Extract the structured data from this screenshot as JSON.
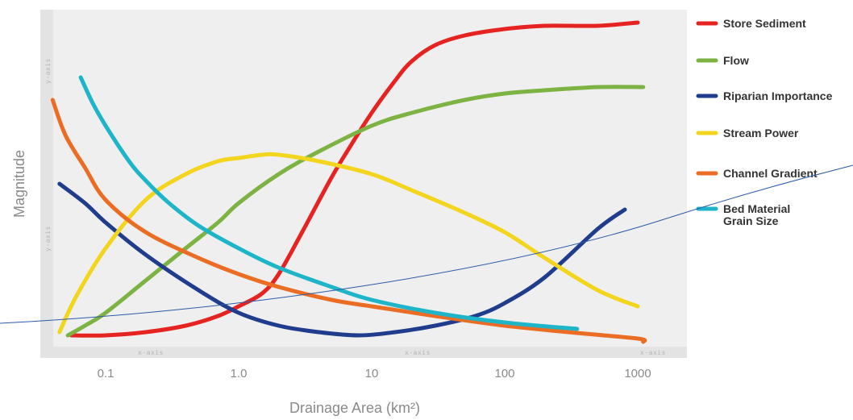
{
  "chart_data": {
    "type": "line",
    "xlabel": "Drainage Area (km²)",
    "ylabel": "Magnitude",
    "x_scale": "log",
    "xlim": [
      0.04,
      1300
    ],
    "ylim": [
      0,
      1
    ],
    "x_ticks": [
      0.1,
      1.0,
      10,
      100,
      1000
    ],
    "x_tick_labels": [
      "0.1",
      "1.0",
      "10",
      "100",
      "1000"
    ],
    "x_axis_tags": [
      "x-axis",
      "x-axis",
      "x-axis"
    ],
    "y_axis_tags": [
      "y-axis",
      "y-axis"
    ],
    "grid": false,
    "legend_position": "right",
    "series": [
      {
        "name": "Store Sediment",
        "color": "#e52421",
        "x": [
          0.055,
          0.1,
          0.2,
          0.4,
          0.7,
          1.0,
          1.5,
          2.0,
          3.0,
          5.0,
          7.0,
          10,
          15,
          20,
          30,
          50,
          100,
          200,
          500,
          1000
        ],
        "y": [
          0.03,
          0.03,
          0.04,
          0.06,
          0.09,
          0.12,
          0.16,
          0.22,
          0.35,
          0.52,
          0.62,
          0.72,
          0.82,
          0.88,
          0.93,
          0.96,
          0.98,
          0.99,
          0.99,
          1.0
        ]
      },
      {
        "name": "Flow",
        "color": "#7cb342",
        "x": [
          0.052,
          0.07,
          0.1,
          0.2,
          0.4,
          0.7,
          1.0,
          2.0,
          4.0,
          10,
          20,
          50,
          100,
          200,
          500,
          1100
        ],
        "y": [
          0.03,
          0.06,
          0.1,
          0.2,
          0.3,
          0.38,
          0.44,
          0.53,
          0.6,
          0.68,
          0.72,
          0.76,
          0.78,
          0.79,
          0.8,
          0.8
        ]
      },
      {
        "name": "Riparian Importance",
        "color": "#1f3d8c",
        "x": [
          0.045,
          0.07,
          0.1,
          0.2,
          0.5,
          1.0,
          2.0,
          4.0,
          8.0,
          15,
          30,
          60,
          100,
          200,
          500,
          800
        ],
        "y": [
          0.5,
          0.44,
          0.38,
          0.28,
          0.17,
          0.1,
          0.06,
          0.04,
          0.03,
          0.04,
          0.06,
          0.09,
          0.13,
          0.21,
          0.36,
          0.42
        ]
      },
      {
        "name": "Stream Power",
        "color": "#f2d51c",
        "x": [
          0.045,
          0.06,
          0.1,
          0.2,
          0.4,
          0.7,
          1.0,
          1.5,
          2.0,
          4.0,
          10,
          20,
          50,
          100,
          200,
          500,
          1000
        ],
        "y": [
          0.04,
          0.15,
          0.3,
          0.45,
          0.53,
          0.57,
          0.58,
          0.59,
          0.59,
          0.57,
          0.53,
          0.48,
          0.41,
          0.35,
          0.27,
          0.17,
          0.12
        ]
      },
      {
        "name": "Channel Gradient",
        "color": "#ea6d23",
        "x": [
          0.04,
          0.05,
          0.07,
          0.1,
          0.2,
          0.5,
          1.0,
          2.0,
          5.0,
          10,
          30,
          100,
          300,
          1000,
          1100
        ],
        "y": [
          0.76,
          0.65,
          0.55,
          0.45,
          0.35,
          0.27,
          0.22,
          0.18,
          0.14,
          0.12,
          0.09,
          0.06,
          0.04,
          0.02,
          0.01
        ]
      },
      {
        "name": "Bed Material\nGrain Size",
        "legend_lines": [
          "Bed Material",
          "Grain Size"
        ],
        "color": "#1fb5c8",
        "x": [
          0.065,
          0.08,
          0.1,
          0.15,
          0.2,
          0.3,
          0.5,
          1.0,
          2.0,
          5.0,
          10,
          30,
          100,
          350
        ],
        "y": [
          0.83,
          0.75,
          0.68,
          0.57,
          0.51,
          0.44,
          0.37,
          0.3,
          0.24,
          0.18,
          0.14,
          0.1,
          0.07,
          0.05
        ]
      }
    ]
  }
}
